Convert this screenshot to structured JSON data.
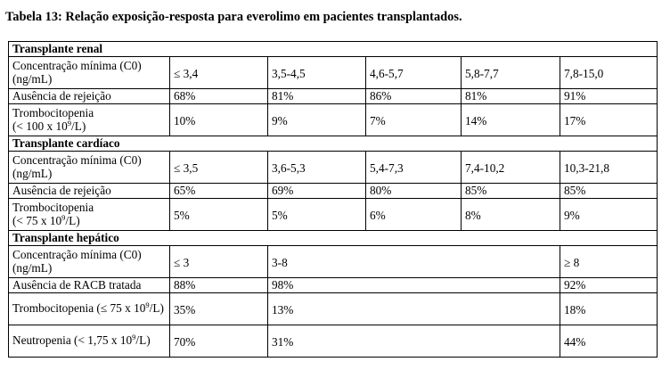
{
  "caption": "Tabela 13: Relação exposição-resposta para everolimo em pacientes transplantados.",
  "renal": {
    "title": "Transplante renal",
    "conc_label": "Concentração mínima (C0) (ng/mL)",
    "conc": [
      "≤ 3,4",
      "3,5-4,5",
      "4,6-5,7",
      "5,8-7,7",
      "7,8-15,0"
    ],
    "rej_label": "Ausência de rejeição",
    "rej": [
      "68%",
      "81%",
      "86%",
      "81%",
      "91%"
    ],
    "trombo_label_a": "Trombocitopenia",
    "trombo_label_b": "(< 100 x 10",
    "trombo_label_sup": "9",
    "trombo_label_c": "/L)",
    "trombo": [
      "10%",
      "9%",
      "7%",
      "14%",
      "17%"
    ]
  },
  "cardiac": {
    "title": "Transplante cardíaco",
    "conc_label": "Concentração mínima (C0) (ng/mL)",
    "conc": [
      "≤ 3,5",
      "3,6-5,3",
      "5,4-7,3",
      "7,4-10,2",
      "10,3-21,8"
    ],
    "rej_label": "Ausência de rejeição",
    "rej": [
      "65%",
      "69%",
      "80%",
      "85%",
      "85%"
    ],
    "trombo_label_a": "Trombocitopenia",
    "trombo_label_b": "(< 75 x 10",
    "trombo_label_sup": "9",
    "trombo_label_c": "/L)",
    "trombo": [
      "5%",
      "5%",
      "6%",
      "8%",
      "9%"
    ]
  },
  "hepatic": {
    "title": "Transplante hepático",
    "conc_label": "Concentração mínima (C0) (ng/mL)",
    "conc": [
      "≤ 3",
      "3-8",
      "≥ 8"
    ],
    "racb_label": "Ausência de RACB tratada",
    "racb": [
      "88%",
      "98%",
      "92%"
    ],
    "trombo_label_a": "Trombocitopenia (≤ 75 x 10",
    "trombo_label_sup": "9",
    "trombo_label_c": "/L)",
    "trombo": [
      "35%",
      "13%",
      "18%"
    ],
    "neutro_label_a": "Neutropenia (< 1,75 x 10",
    "neutro_label_sup": "9",
    "neutro_label_c": "/L)",
    "neutro": [
      "70%",
      "31%",
      "44%"
    ]
  }
}
